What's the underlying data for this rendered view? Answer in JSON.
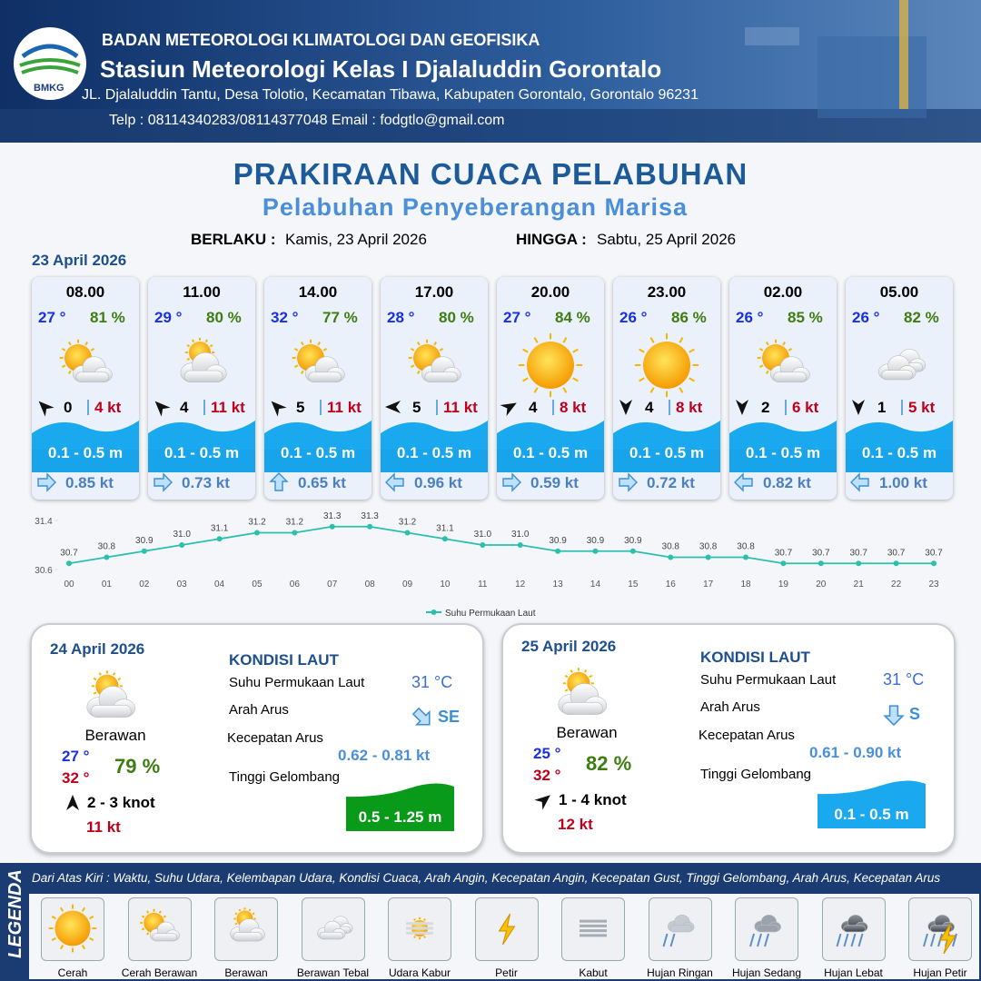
{
  "header": {
    "logo_text": "BMKG",
    "organization": "BADAN METEOROLOGI KLIMATOLOGI DAN GEOFISIKA",
    "station": "Stasiun Meteorologi Kelas I Djalaluddin Gorontalo",
    "address": "JL. Djalaluddin Tantu, Desa Tolotio, Kecamatan Tibawa, Kabupaten Gorontalo, Gorontalo 96231",
    "contact": "Telp : 08114340283/08114377048 Email : fodgtlo@gmail.com"
  },
  "title": "PRAKIRAAN CUACA PELABUHAN",
  "subtitle": "Pelabuhan Penyeberangan Marisa",
  "validity": {
    "from_label": "BERLAKU :",
    "from_value": "Kamis, 23 April 2026",
    "to_label": "HINGGA :",
    "to_value": "Sabtu, 25 April 2026"
  },
  "today": {
    "date": "23 April 2026",
    "forecasts": [
      {
        "time": "08.00",
        "temp": "27 °",
        "humidity": "81 %",
        "icon": 1,
        "wind_dir": 315,
        "wind": "0",
        "gust": "4 kt",
        "wave": "0.1 - 0.5 m",
        "current_dir": 90,
        "current": "0.85 kt"
      },
      {
        "time": "11.00",
        "temp": "29 °",
        "humidity": "80 %",
        "icon": 2,
        "wind_dir": 315,
        "wind": "4",
        "gust": "11 kt",
        "wave": "0.1 - 0.5 m",
        "current_dir": 90,
        "current": "0.73 kt"
      },
      {
        "time": "14.00",
        "temp": "32 °",
        "humidity": "77 %",
        "icon": 1,
        "wind_dir": 315,
        "wind": "5",
        "gust": "11 kt",
        "wave": "0.1 - 0.5 m",
        "current_dir": 0,
        "current": "0.65 kt"
      },
      {
        "time": "17.00",
        "temp": "28 °",
        "humidity": "80 %",
        "icon": 1,
        "wind_dir": 270,
        "wind": "5",
        "gust": "11 kt",
        "wave": "0.1 - 0.5 m",
        "current_dir": 270,
        "current": "0.96 kt"
      },
      {
        "time": "20.00",
        "temp": "27 °",
        "humidity": "84 %",
        "icon": 0,
        "wind_dir": 60,
        "wind": "4",
        "gust": "8 kt",
        "wave": "0.1 - 0.5 m",
        "current_dir": 90,
        "current": "0.59 kt"
      },
      {
        "time": "23.00",
        "temp": "26 °",
        "humidity": "86 %",
        "icon": 0,
        "wind_dir": 180,
        "wind": "4",
        "gust": "8 kt",
        "wave": "0.1 - 0.5 m",
        "current_dir": 90,
        "current": "0.72 kt"
      },
      {
        "time": "02.00",
        "temp": "26 °",
        "humidity": "85 %",
        "icon": 1,
        "wind_dir": 180,
        "wind": "2",
        "gust": "6 kt",
        "wave": "0.1 - 0.5 m",
        "current_dir": 270,
        "current": "0.82 kt"
      },
      {
        "time": "05.00",
        "temp": "26 °",
        "humidity": "82 %",
        "icon": 3,
        "wind_dir": 180,
        "wind": "1",
        "gust": "5 kt",
        "wave": "0.1 - 0.5 m",
        "current_dir": 270,
        "current": "1.00 kt"
      }
    ]
  },
  "chart_data": {
    "type": "line",
    "categories": [
      "00",
      "01",
      "02",
      "03",
      "04",
      "05",
      "06",
      "07",
      "08",
      "09",
      "10",
      "11",
      "12",
      "13",
      "14",
      "15",
      "16",
      "17",
      "18",
      "19",
      "20",
      "21",
      "22",
      "23"
    ],
    "series": [
      {
        "name": "Suhu Permukaan Laut",
        "color": "#2bbfad",
        "values": [
          30.7,
          30.8,
          30.9,
          31.0,
          31.1,
          31.2,
          31.2,
          31.3,
          31.3,
          31.2,
          31.1,
          31.0,
          31.0,
          30.9,
          30.9,
          30.9,
          30.8,
          30.8,
          30.8,
          30.7,
          30.7,
          30.7,
          30.7,
          30.7
        ],
        "value_labels": [
          "30.7",
          "30.8",
          "30.9",
          "31.0",
          "31.1",
          "31.2",
          "31.2",
          "31.3",
          "31.3",
          "31.2",
          "31.1",
          "31.0",
          "31.0",
          "30.9",
          "30.9",
          "30.9",
          "30.8",
          "30.8",
          "30.8",
          "30.7",
          "30.7",
          "30.7",
          "30.7",
          "30.7"
        ]
      }
    ],
    "ylim": [
      30.6,
      31.4
    ],
    "yticks": [
      30.6,
      31.4
    ]
  },
  "days": [
    {
      "date": "24 April 2026",
      "icon": 2,
      "condition": "Berawan",
      "temp_min": "27 °",
      "temp_max": "32 °",
      "humidity": "79 %",
      "wind_dir": 0,
      "wind": "2  - 3 knot",
      "gust": "11 kt",
      "sea_heading": "KONDISI LAUT",
      "sst_label": "Suhu Permukaan Laut",
      "sst": "31 °C",
      "current_dir_label": "Arah Arus",
      "current_dir_deg": 135,
      "current_dir": "SE",
      "current_speed_label": "Kecepatan Arus",
      "current_speed": "0.62  - 0.81 kt",
      "wave_label": "Tinggi Gelombang",
      "wave": "0.5 - 1.25 m",
      "wave_color": "#0a9a1a"
    },
    {
      "date": "25 April 2026",
      "icon": 2,
      "condition": "Berawan",
      "temp_min": "25 °",
      "temp_max": "32 °",
      "humidity": "82 %",
      "wind_dir": 50,
      "wind": "1  - 4 knot",
      "gust": "12 kt",
      "sea_heading": "KONDISI LAUT",
      "sst_label": "Suhu Permukaan Laut",
      "sst": "31 °C",
      "current_dir_label": "Arah Arus",
      "current_dir_deg": 180,
      "current_dir": "S",
      "current_speed_label": "Kecepatan Arus",
      "current_speed": "0.61  - 0.90 kt",
      "wave_label": "Tinggi Gelombang",
      "wave": "0.1 - 0.5 m",
      "wave_color": "#1aa8ee"
    }
  ],
  "legend": {
    "title": "LEGENDA",
    "description": "Dari Atas Kiri : Waktu, Suhu Udara, Kelembapan Udara, Kondisi Cuaca, Arah Angin, Kecepatan Angin, Kecepatan Gust, Tinggi Gelombang, Arah Arus, Kecepatan Arus",
    "items": [
      "Cerah",
      "Cerah Berawan",
      "Berawan",
      "Berawan Tebal",
      "Udara Kabur",
      "Petir",
      "Kabut",
      "Hujan Ringan",
      "Hujan Sedang",
      "Hujan Lebat",
      "Hujan Petir"
    ]
  }
}
